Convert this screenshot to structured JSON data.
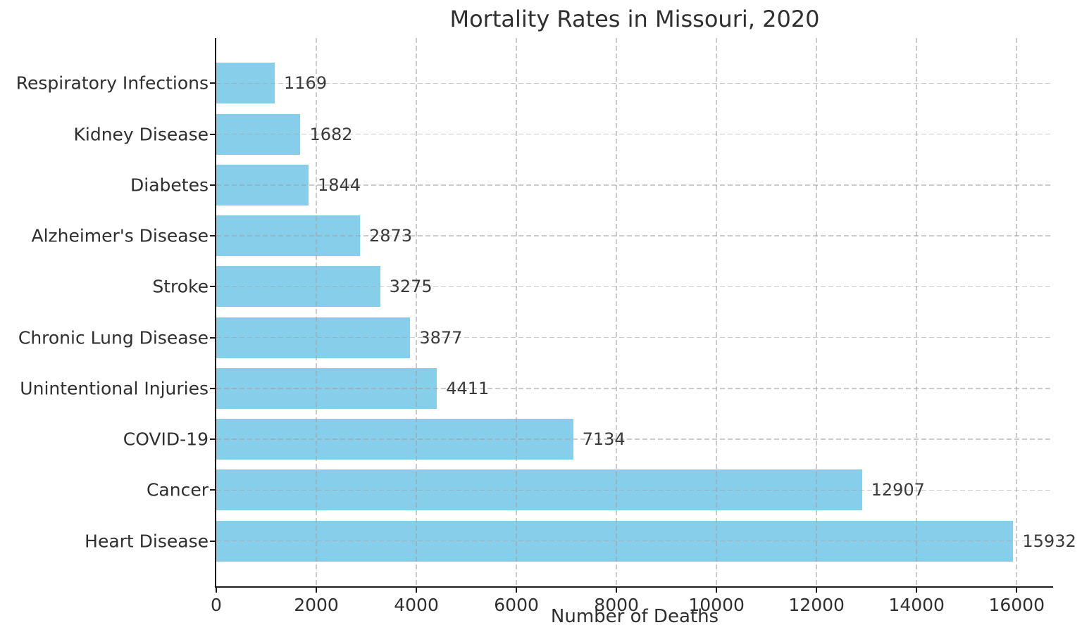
{
  "chart_data": {
    "type": "bar",
    "orientation": "horizontal",
    "title": "Mortality Rates in Missouri, 2020",
    "xlabel": "Number of Deaths",
    "ylabel": "",
    "categories": [
      "Respiratory Infections",
      "Kidney Disease",
      "Diabetes",
      "Alzheimer's Disease",
      "Stroke",
      "Chronic Lung Disease",
      "Unintentional Injuries",
      "COVID-19",
      "Cancer",
      "Heart Disease"
    ],
    "values": [
      1169,
      1682,
      1844,
      2873,
      3275,
      3877,
      4411,
      7134,
      12907,
      15932
    ],
    "xticks": [
      0,
      2000,
      4000,
      6000,
      8000,
      10000,
      12000,
      14000,
      16000
    ],
    "xlim": [
      0,
      16729
    ],
    "grid": {
      "visible": true,
      "style": "dashed",
      "axes": "both"
    },
    "legend_visible": false,
    "colors": {
      "bar": "#87CEEB",
      "text": "#2f2f2f",
      "grid": "#cfcfcf",
      "spine": "#1c1c1c",
      "background": "#ffffff"
    }
  }
}
